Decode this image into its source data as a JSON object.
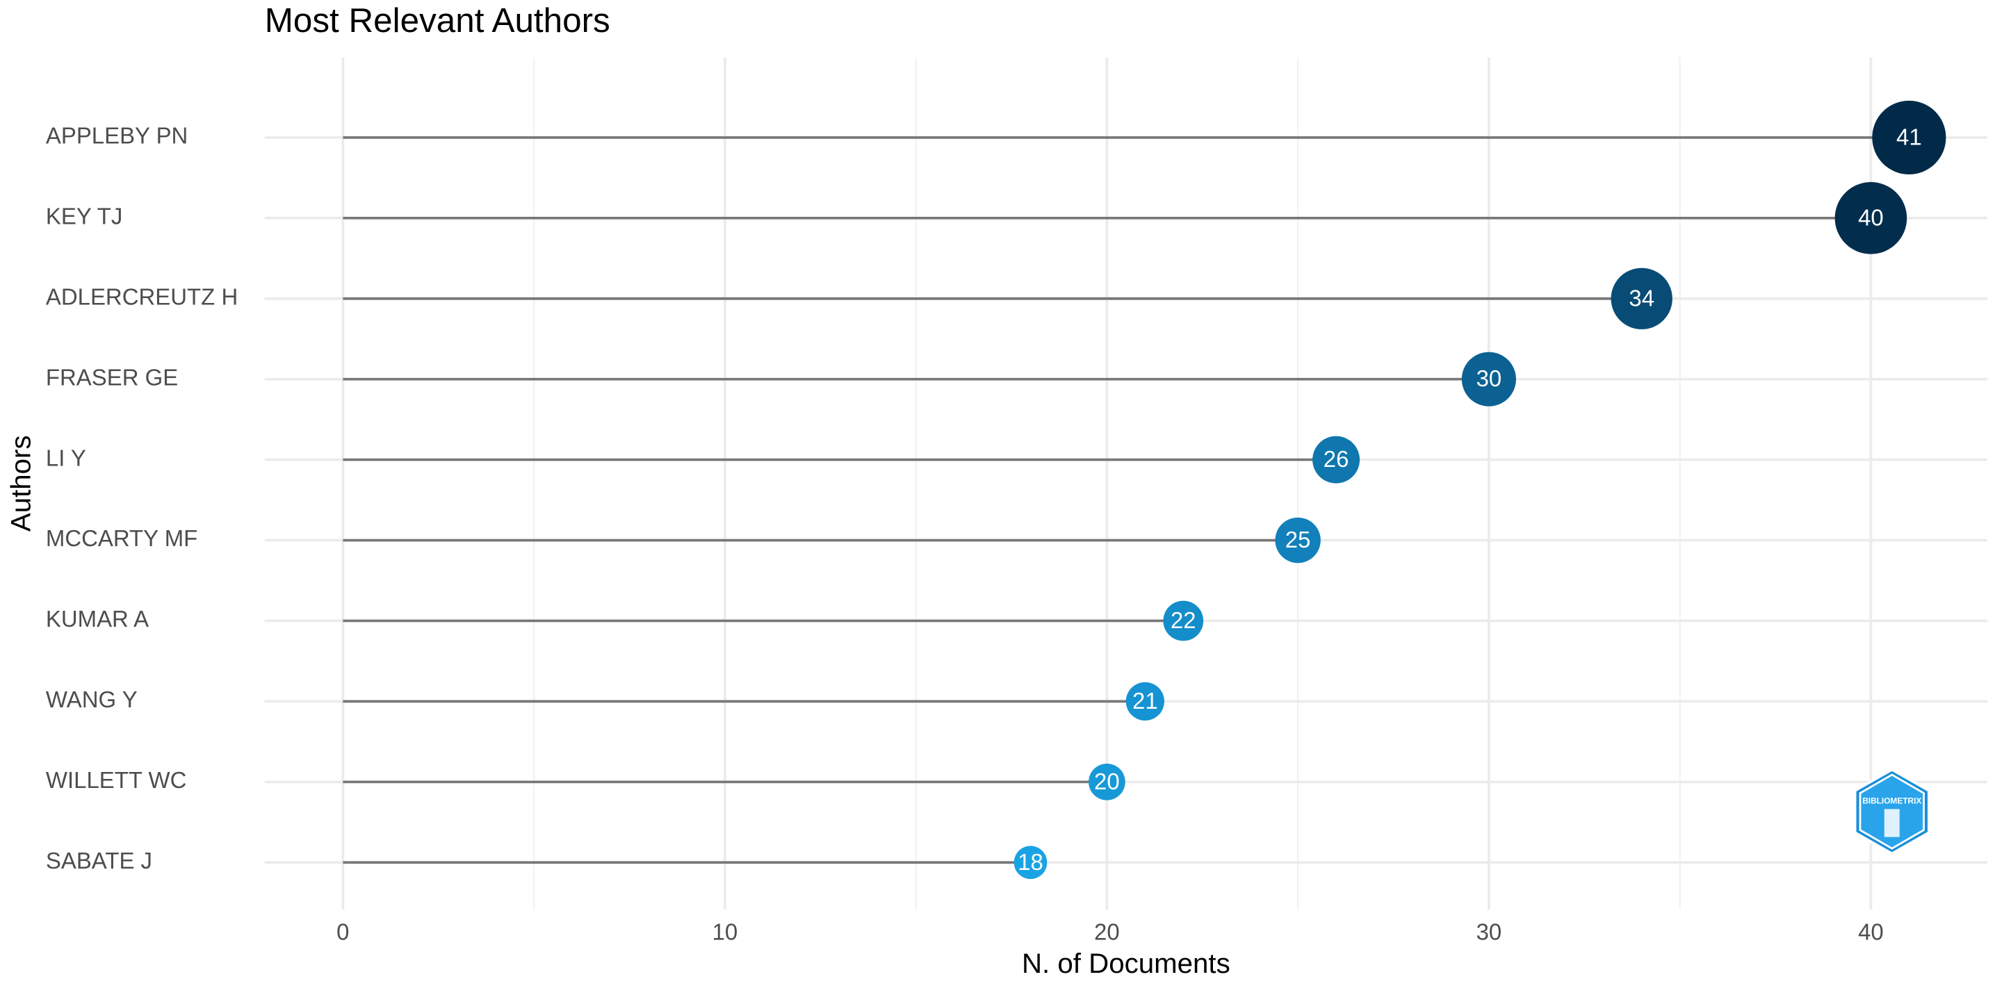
{
  "chart_data": {
    "type": "lollipop",
    "title": "Most Relevant Authors",
    "x_label": "N. of Documents",
    "y_label": "Authors",
    "categories": [
      "APPLEBY PN",
      "KEY TJ",
      "ADLERCREUTZ H",
      "FRASER GE",
      "LI Y",
      "MCCARTY MF",
      "KUMAR A",
      "WANG Y",
      "WILLETT WC",
      "SABATE J"
    ],
    "values": [
      41,
      40,
      34,
      30,
      26,
      25,
      22,
      21,
      20,
      18
    ],
    "colors": [
      "#012a49",
      "#032d4d",
      "#084c75",
      "#0b6192",
      "#0f77ae",
      "#1180bb",
      "#148dcb",
      "#1693d2",
      "#1799d8",
      "#1aa3e4"
    ],
    "xlim": [
      -2.05,
      43.05
    ],
    "xticks": [
      0,
      10,
      20,
      30,
      40
    ],
    "xminorticks": [
      5,
      15,
      25,
      35
    ],
    "grid": true,
    "watermark": "BIBLIOMETRIX"
  }
}
